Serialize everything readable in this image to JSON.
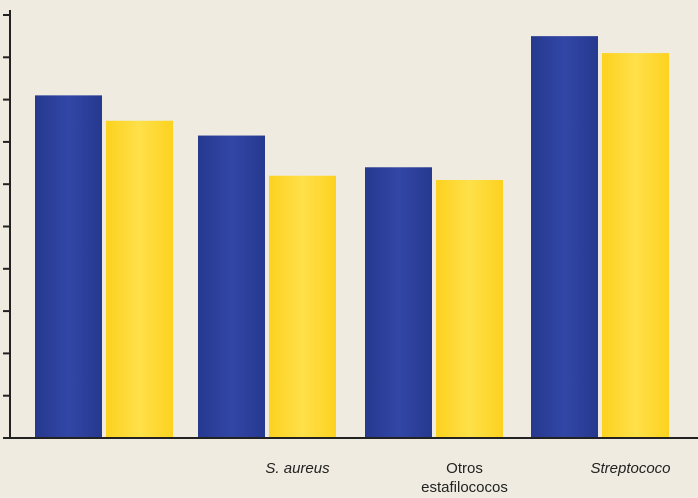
{
  "chart_data": {
    "type": "bar",
    "categories": [
      {
        "lines": [
          ""
        ],
        "italic": false
      },
      {
        "lines": [
          "S. aureus"
        ],
        "italic": true
      },
      {
        "lines": [
          "Otros",
          "estafilococos"
        ],
        "italic": false
      },
      {
        "lines": [
          "Streptococo"
        ],
        "italic": true
      }
    ],
    "series": [
      {
        "values": [
          8.1,
          7.15,
          6.4,
          9.5
        ]
      },
      {
        "values": [
          7.5,
          6.2,
          6.1,
          9.1
        ]
      }
    ],
    "ylim": [
      0,
      10
    ],
    "y_tick_count": 11,
    "grid": false,
    "legend": "none",
    "colors": {
      "series": [
        "#26398f",
        "#fdd21f"
      ],
      "series_highlight": [
        "#3246a6",
        "#fee04a"
      ],
      "background": "#efebe0",
      "axis": "#222222"
    }
  }
}
